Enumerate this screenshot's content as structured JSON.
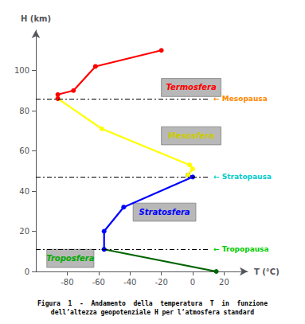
{
  "chart_data": {
    "type": "line",
    "xlabel": "T (°C)",
    "ylabel": "H (km)",
    "caption": "Figura  1  -  Andamento  della  temperatura  T  in  funzione\ndell’altezza geopotenziale H per l’atmosfera standard",
    "xlim": [
      -100,
      35
    ],
    "ylim": [
      0,
      120
    ],
    "xticks": [
      -80,
      -60,
      -40,
      -20,
      0,
      20
    ],
    "yticks": [
      0,
      20,
      40,
      60,
      80,
      100
    ],
    "grid": false,
    "series": [
      {
        "color": "#006400",
        "marker": "circle",
        "x": [
          15,
          -56.5
        ],
        "values": [
          0,
          11
        ]
      },
      {
        "color": "#0000ff",
        "marker": "circle",
        "x": [
          -56.5,
          -56.5,
          -44,
          0,
          -3
        ],
        "values": [
          11,
          20,
          32,
          47,
          48
        ]
      },
      {
        "color": "#ffff00",
        "marker": "circle",
        "x": [
          -3,
          0,
          -2,
          -58,
          -86
        ],
        "values": [
          48,
          51,
          53,
          71,
          86
        ]
      },
      {
        "color": "#ff0000",
        "marker": "circle",
        "x": [
          -86,
          -86,
          -76,
          -62,
          -20
        ],
        "values": [
          86,
          88,
          90,
          102,
          110
        ]
      }
    ],
    "annotations": [
      {
        "text": "← Tropopausa",
        "y": 11,
        "color": "#00cc00"
      },
      {
        "text": "← Stratopausa",
        "y": 47,
        "color": "#00cccc"
      },
      {
        "text": "← Mesopausa",
        "y": 86,
        "color": "#ff8800"
      },
      {
        "text": "Troposfera",
        "x": [
          -93,
          -63
        ],
        "y": [
          2,
          11
        ],
        "color": "#00aa00"
      },
      {
        "text": "Stratosfera",
        "x": [
          -38,
          2
        ],
        "y": [
          25,
          34
        ],
        "color": "#0000ff"
      },
      {
        "text": "Mesosfera",
        "x": [
          -20,
          18
        ],
        "y": [
          63,
          72
        ],
        "color": "#cccc00"
      },
      {
        "text": "Termosfera",
        "x": [
          -20,
          18
        ],
        "y": [
          87,
          96
        ],
        "color": "#ff0000"
      }
    ]
  }
}
